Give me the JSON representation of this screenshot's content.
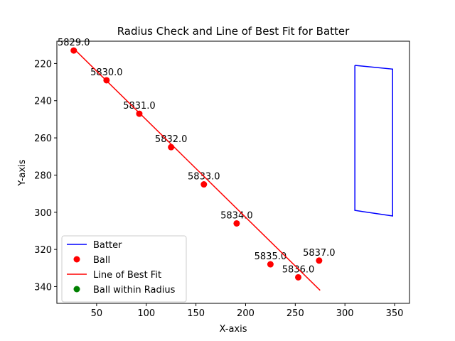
{
  "chart_data": {
    "type": "scatter",
    "title": "Radius Check and Line of Best Fit for Batter",
    "xlabel": "X-axis",
    "ylabel": "Y-axis",
    "xlim": [
      10,
      365
    ],
    "ylim": [
      349,
      208
    ],
    "y_inverted": true,
    "grid": false,
    "legend_position": "lower-left",
    "x_ticks": [
      50,
      100,
      150,
      200,
      250,
      300,
      350
    ],
    "y_ticks": [
      220,
      240,
      260,
      280,
      300,
      320,
      340
    ],
    "series": [
      {
        "name": "Batter",
        "type": "line",
        "color": "#0000ff",
        "x": [
          310,
          348,
          348,
          310,
          310
        ],
        "y": [
          221,
          223,
          302,
          299,
          221
        ]
      },
      {
        "name": "Ball",
        "type": "scatter",
        "color": "#ff0000",
        "points": [
          {
            "x": 27,
            "y": 213,
            "label": "5829.0"
          },
          {
            "x": 60,
            "y": 229,
            "label": "5830.0"
          },
          {
            "x": 93,
            "y": 247,
            "label": "5831.0"
          },
          {
            "x": 125,
            "y": 265,
            "label": "5832.0"
          },
          {
            "x": 158,
            "y": 285,
            "label": "5833.0"
          },
          {
            "x": 191,
            "y": 306,
            "label": "5834.0"
          },
          {
            "x": 225,
            "y": 328,
            "label": "5835.0"
          },
          {
            "x": 253,
            "y": 335,
            "label": "5836.0"
          },
          {
            "x": 274,
            "y": 326,
            "label": "5837.0"
          }
        ]
      },
      {
        "name": "Line of Best Fit",
        "type": "line",
        "color": "#ff0000",
        "x": [
          27,
          275
        ],
        "y": [
          212,
          342
        ]
      },
      {
        "name": "Ball within Radius",
        "type": "scatter",
        "color": "#008000",
        "points": []
      }
    ]
  }
}
